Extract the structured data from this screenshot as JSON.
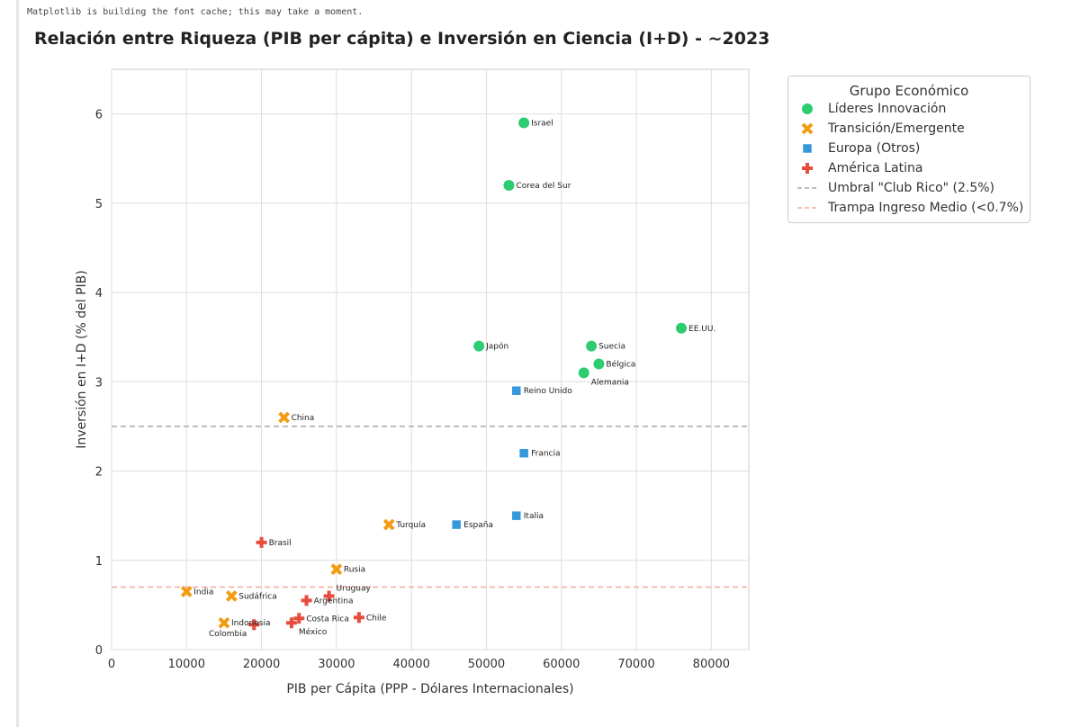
{
  "console_output": "Matplotlib is building the font cache; this may take a moment.",
  "chart_data": {
    "type": "scatter",
    "title": "Relación entre Riqueza (PIB per cápita) e Inversión en Ciencia (I+D) - ~2023",
    "xlabel": "PIB per Cápita (PPP - Dólares Internacionales)",
    "ylabel": "Inversión en I+D (% del PIB)",
    "xlim": [
      0,
      85000
    ],
    "ylim": [
      0,
      6.5
    ],
    "xticks": [
      0,
      10000,
      20000,
      30000,
      40000,
      50000,
      60000,
      70000,
      80000
    ],
    "yticks": [
      0,
      1,
      2,
      3,
      4,
      5,
      6
    ],
    "grid": true,
    "legend_title": "Grupo Económico",
    "legend_placement": "outside-top-right",
    "series": [
      {
        "name": "Líderes Innovación",
        "marker": "circle",
        "color": "#2ecc71",
        "points": [
          {
            "label": "Israel",
            "x": 55000,
            "y": 5.9
          },
          {
            "label": "Corea del Sur",
            "x": 53000,
            "y": 5.2
          },
          {
            "label": "Japón",
            "x": 49000,
            "y": 3.4
          },
          {
            "label": "Suecia",
            "x": 64000,
            "y": 3.4
          },
          {
            "label": "Bélgica",
            "x": 65000,
            "y": 3.2
          },
          {
            "label": "Alemania",
            "x": 63000,
            "y": 3.1
          },
          {
            "label": "EE.UU.",
            "x": 76000,
            "y": 3.6
          }
        ]
      },
      {
        "name": "Transición/Emergente",
        "marker": "x",
        "color": "#f39c12",
        "points": [
          {
            "label": "China",
            "x": 23000,
            "y": 2.6
          },
          {
            "label": "Turquía",
            "x": 37000,
            "y": 1.4
          },
          {
            "label": "Rusia",
            "x": 30000,
            "y": 0.9
          },
          {
            "label": "India",
            "x": 10000,
            "y": 0.65
          },
          {
            "label": "Sudáfrica",
            "x": 16000,
            "y": 0.6
          },
          {
            "label": "Indonesia",
            "x": 15000,
            "y": 0.3
          }
        ]
      },
      {
        "name": "Europa (Otros)",
        "marker": "square",
        "color": "#3498db",
        "points": [
          {
            "label": "Reino Unido",
            "x": 54000,
            "y": 2.9
          },
          {
            "label": "Francia",
            "x": 55000,
            "y": 2.2
          },
          {
            "label": "Italia",
            "x": 54000,
            "y": 1.5
          },
          {
            "label": "España",
            "x": 46000,
            "y": 1.4
          }
        ]
      },
      {
        "name": "América Latina",
        "marker": "plus",
        "color": "#e74c3c",
        "points": [
          {
            "label": "Brasil",
            "x": 20000,
            "y": 1.2
          },
          {
            "label": "Argentina",
            "x": 26000,
            "y": 0.55
          },
          {
            "label": "Uruguay",
            "x": 29000,
            "y": 0.6
          },
          {
            "label": "Costa Rica",
            "x": 25000,
            "y": 0.35
          },
          {
            "label": "México",
            "x": 24000,
            "y": 0.3
          },
          {
            "label": "Colombia",
            "x": 19000,
            "y": 0.28
          },
          {
            "label": "Chile",
            "x": 33000,
            "y": 0.36
          }
        ]
      }
    ],
    "reference_lines": [
      {
        "name": "Umbral \"Club Rico\" (2.5%)",
        "y": 2.5,
        "color": "#aaaaaa",
        "style": "dashed"
      },
      {
        "name": "Trampa Ingreso Medio (<0.7%)",
        "y": 0.7,
        "color": "#f1a89a",
        "style": "dashed"
      }
    ]
  }
}
